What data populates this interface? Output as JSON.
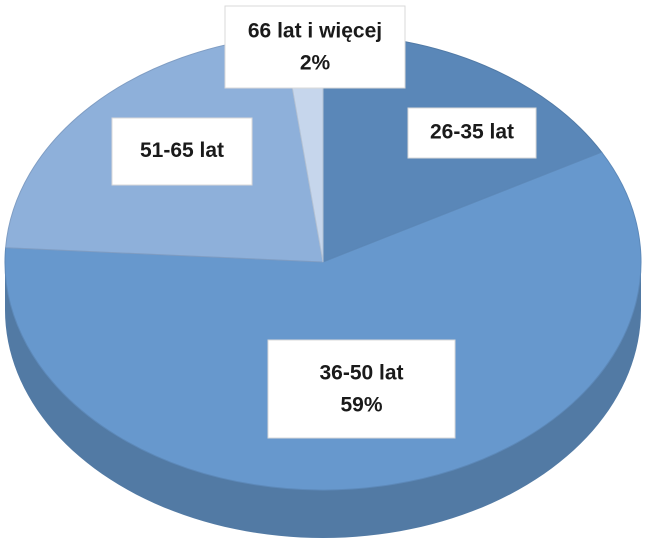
{
  "chart_data": {
    "type": "pie3d",
    "categories": [
      "26-35 lat",
      "36-50 lat",
      "51-65 lat",
      "66 lat i więcej"
    ],
    "values": [
      17,
      59,
      22,
      2
    ],
    "value_labels": [
      null,
      "59%",
      null,
      "2%"
    ],
    "colors": [
      "#5a87b8",
      "#6798cd",
      "#8eb0da",
      "#c6d6ec"
    ]
  }
}
